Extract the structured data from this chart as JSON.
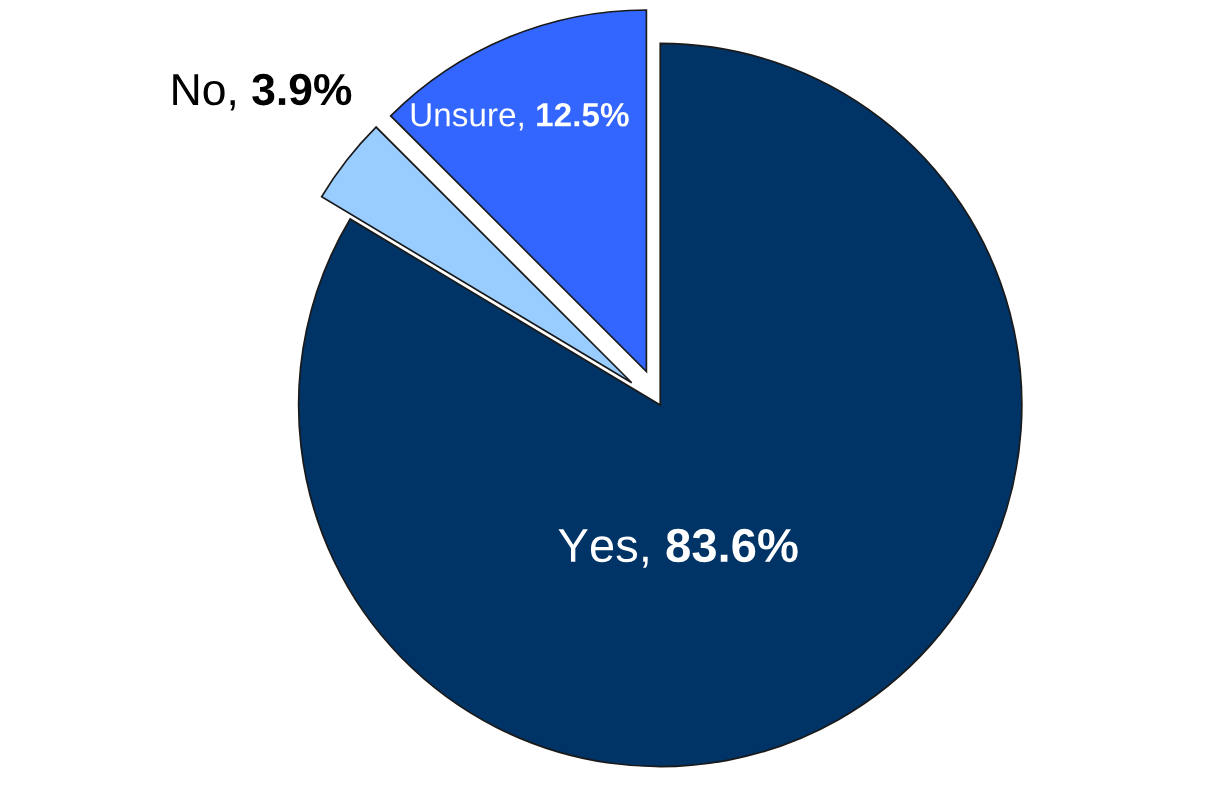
{
  "chart_data": {
    "type": "pie",
    "categories": [
      "Yes",
      "No",
      "Unsure"
    ],
    "values": [
      83.6,
      3.9,
      12.5
    ],
    "colors": [
      "#003366",
      "#99ccff",
      "#3366ff"
    ],
    "value_labels": [
      "83.6%",
      "3.9%",
      "12.5%"
    ]
  }
}
